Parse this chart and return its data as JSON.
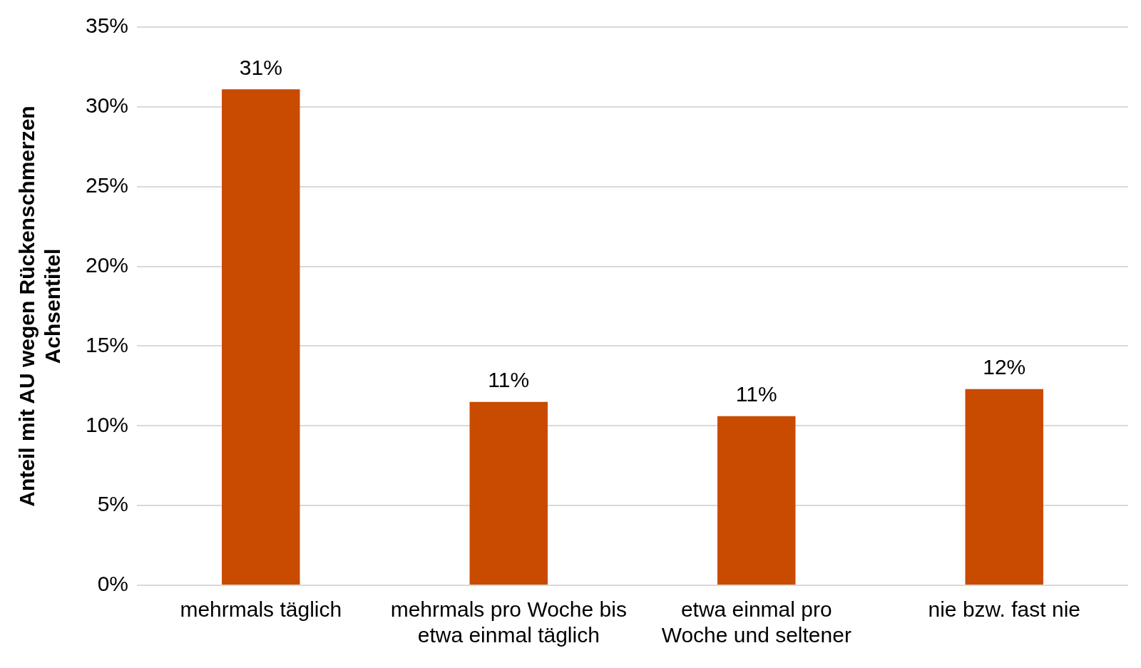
{
  "chart_data": {
    "type": "bar",
    "ylabel": "Anteil mit AU wegen Rückenschmerzen\nAchsentitel",
    "categories": [
      "mehrmals täglich",
      "mehrmals pro Woche bis etwa einmal täglich",
      "etwa einmal pro Woche und seltener",
      "nie bzw. fast nie"
    ],
    "values": [
      31.1,
      11.5,
      10.6,
      12.3
    ],
    "color": "#c84b00",
    "value_labels": [
      "31%",
      "11%",
      "11%",
      "12%"
    ],
    "ylim": [
      0,
      35
    ],
    "yticks": [
      {
        "value": 0,
        "label": "0%"
      },
      {
        "value": 5,
        "label": "5%"
      },
      {
        "value": 10,
        "label": "10%"
      },
      {
        "value": 15,
        "label": "15%"
      },
      {
        "value": 20,
        "label": "20%"
      },
      {
        "value": 25,
        "label": "25%"
      },
      {
        "value": 30,
        "label": "30%"
      },
      {
        "value": 35,
        "label": "35%"
      }
    ],
    "grid": "y",
    "legend": false
  }
}
